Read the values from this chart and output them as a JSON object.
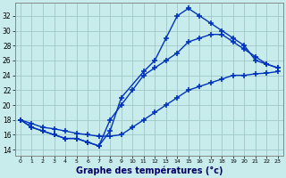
{
  "xlabel": "Graphe des températures (°c)",
  "bg_color": "#c8ecec",
  "grid_color": "#a0c8c8",
  "line_color": "#0033bb",
  "yticks": [
    14,
    16,
    18,
    20,
    22,
    24,
    26,
    28,
    30,
    32
  ],
  "ylim": [
    13.2,
    33.8
  ],
  "xlim": [
    -0.5,
    23.5
  ],
  "s1_x": [
    0,
    1,
    2,
    3,
    4,
    5,
    6,
    7,
    8,
    9,
    11,
    12,
    13,
    14,
    15,
    16,
    17,
    18,
    19,
    20,
    21,
    22,
    23
  ],
  "s1_y": [
    18,
    17,
    16.5,
    16,
    15.5,
    15.5,
    15,
    14.5,
    16.5,
    21,
    24.5,
    26,
    29,
    32,
    33,
    32,
    31,
    30,
    29,
    28,
    26,
    25.5,
    25
  ],
  "s2_x": [
    0,
    1,
    2,
    3,
    4,
    5,
    6,
    7,
    8,
    9,
    10,
    11,
    12,
    13,
    14,
    15,
    16,
    17,
    18,
    19,
    20,
    21,
    22,
    23
  ],
  "s2_y": [
    18,
    17,
    16.5,
    16,
    15.5,
    15.5,
    15,
    14.5,
    18,
    20,
    22,
    24,
    25,
    26,
    27,
    28.5,
    29,
    29.5,
    29.5,
    28.5,
    27.5,
    26.5,
    25.5,
    25
  ],
  "s3_x": [
    0,
    1,
    2,
    3,
    4,
    5,
    6,
    7,
    8,
    9,
    10,
    11,
    12,
    13,
    14,
    15,
    16,
    17,
    18,
    19,
    20,
    21,
    22,
    23
  ],
  "s3_y": [
    18,
    17.5,
    17,
    16.8,
    16.5,
    16.2,
    16,
    15.8,
    15.8,
    16,
    17,
    18,
    19,
    20,
    21,
    22,
    22.5,
    23,
    23.5,
    24,
    24,
    24.2,
    24.3,
    24.5
  ]
}
